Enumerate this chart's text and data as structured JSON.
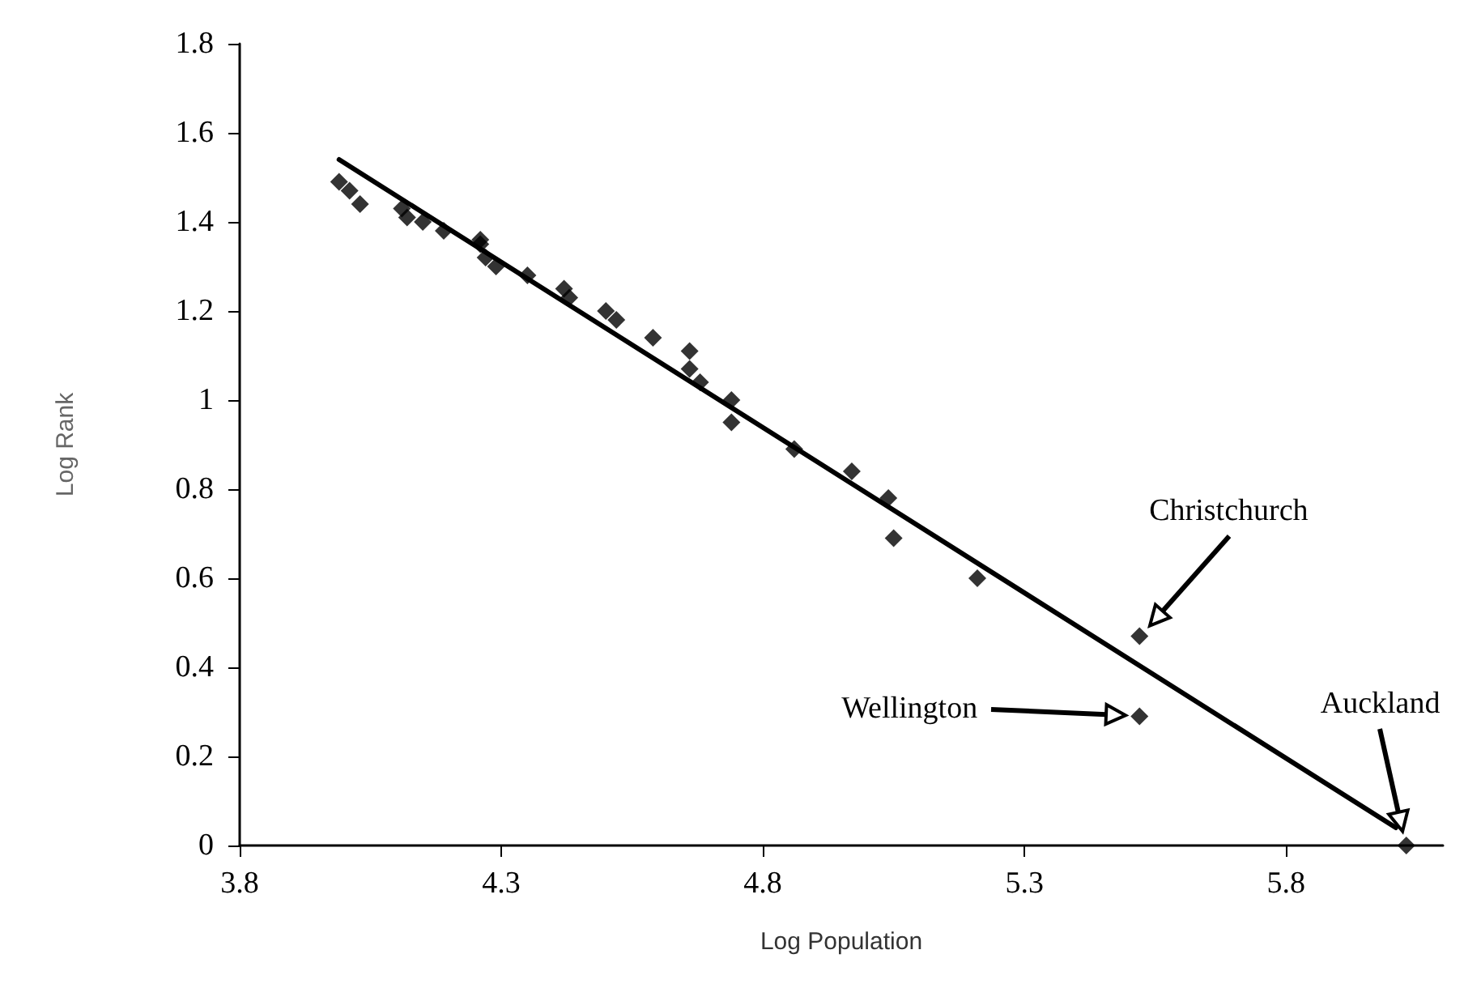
{
  "chart_data": {
    "type": "scatter",
    "xlabel": "Log Population",
    "ylabel": "Log Rank",
    "xlim": [
      3.8,
      6.1
    ],
    "xticks": [
      3.8,
      4.3,
      4.8,
      5.3,
      5.8
    ],
    "ylim": [
      0,
      1.8
    ],
    "yticks": [
      0,
      0.2,
      0.4,
      0.6,
      0.8,
      1,
      1.2,
      1.4,
      1.6,
      1.8
    ],
    "grid": false,
    "marker": "diamond",
    "series": [
      {
        "color": "#000000",
        "x": [
          3.99,
          4.01,
          4.03,
          4.11,
          4.12,
          4.15,
          4.19,
          4.26,
          4.26,
          4.27,
          4.29,
          4.35,
          4.42,
          4.43,
          4.5,
          4.52,
          4.59,
          4.66,
          4.66,
          4.68,
          4.74,
          4.74,
          4.86,
          4.97,
          5.04,
          5.05,
          5.21,
          5.52,
          5.52,
          6.03
        ],
        "values": [
          1.49,
          1.47,
          1.44,
          1.43,
          1.41,
          1.4,
          1.38,
          1.36,
          1.35,
          1.32,
          1.3,
          1.28,
          1.25,
          1.23,
          1.2,
          1.18,
          1.14,
          1.11,
          1.07,
          1.04,
          1,
          0.95,
          0.89,
          0.84,
          0.78,
          0.69,
          0.6,
          0.47,
          0.29,
          0
        ]
      },
      {
        "type": "line",
        "color": "#000000",
        "marker": "none",
        "line_style": "solid",
        "x": [
          3.99,
          6.01
        ],
        "values": [
          1.54,
          0.04
        ]
      }
    ],
    "annotations": [
      "Christchurch",
      "Wellington",
      "Auckland"
    ]
  }
}
